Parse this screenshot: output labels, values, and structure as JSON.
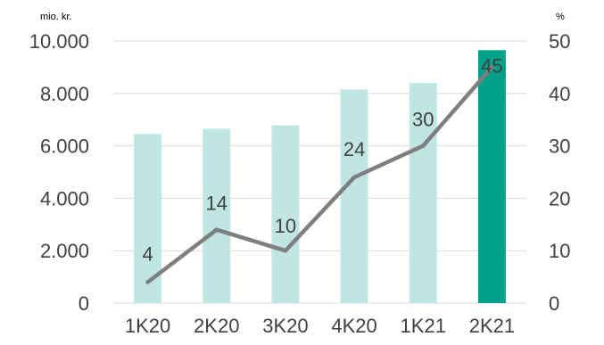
{
  "chart_data": {
    "type": "bar",
    "categories": [
      "1K20",
      "2K20",
      "3K20",
      "4K20",
      "1K21",
      "2K21"
    ],
    "series": [
      {
        "kind": "bar",
        "axis": "left",
        "values": [
          6450,
          6650,
          6780,
          8150,
          8400,
          9650
        ],
        "colors": [
          "#bfe6e1",
          "#bfe6e1",
          "#bfe6e1",
          "#bfe6e1",
          "#bfe6e1",
          "#00a08a"
        ]
      },
      {
        "kind": "line",
        "axis": "right",
        "values": [
          4,
          14,
          10,
          24,
          30,
          45
        ],
        "labels": [
          "4",
          "14",
          "10",
          "24",
          "30",
          "45"
        ],
        "color": "#7f7f7f"
      }
    ],
    "y_left": {
      "unit": "mio. kr.",
      "range": [
        0,
        10000
      ],
      "ticks": [
        "0",
        "2.000",
        "4.000",
        "6.000",
        "8.000",
        "10.000"
      ]
    },
    "y_right": {
      "unit": "%",
      "range": [
        0,
        50
      ],
      "ticks": [
        "0",
        "10",
        "20",
        "30",
        "40",
        "50"
      ]
    },
    "grid": true,
    "legend": "none"
  }
}
